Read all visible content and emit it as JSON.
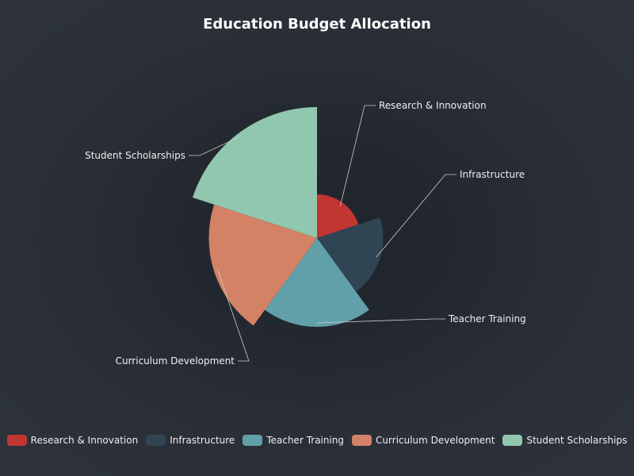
{
  "chart_data": {
    "type": "pie",
    "variant": "nightingale-rose",
    "title": "Education Budget Allocation",
    "categories": [
      "Research & Innovation",
      "Infrastructure",
      "Teacher Training",
      "Curriculum Development",
      "Student Scholarships"
    ],
    "values": [
      8,
      15,
      22,
      28,
      35
    ],
    "colors": [
      "#c23531",
      "#2f4554",
      "#61a0a8",
      "#d48265",
      "#91c7ae"
    ],
    "legend_position": "bottom"
  }
}
